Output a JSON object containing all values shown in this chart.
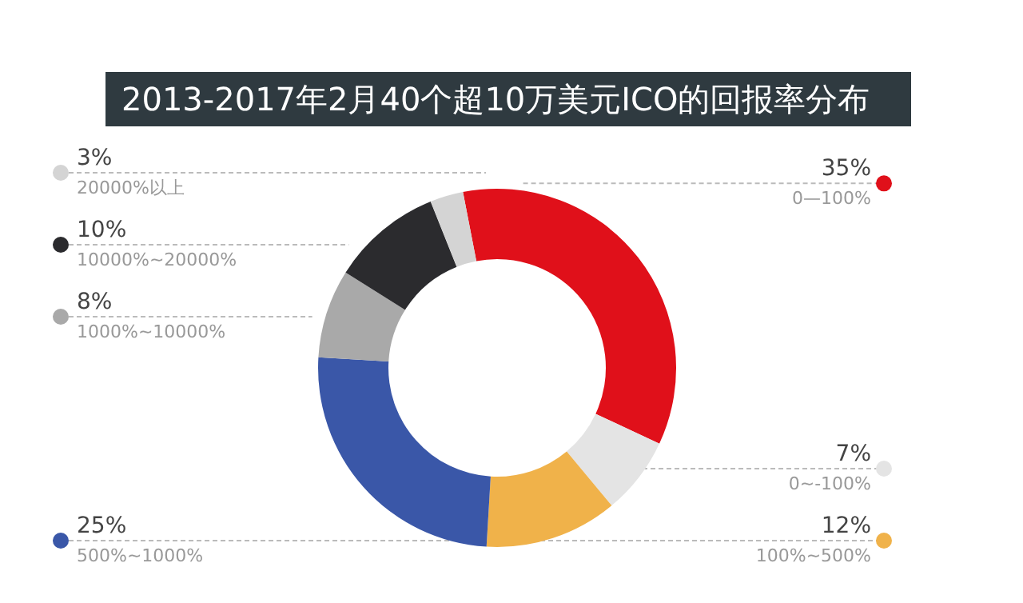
{
  "chart_data": {
    "type": "donut",
    "title": "2013-2017年2月40个超10万美元ICO的回报率分布",
    "categories": [
      "0—100%",
      "0~-100%",
      "100%~500%",
      "500%~1000%",
      "1000%~10000%",
      "10000%~20000%",
      "20000%以上"
    ],
    "values": [
      35,
      7,
      12,
      25,
      8,
      10,
      3
    ],
    "value_labels": [
      "35%",
      "7%",
      "12%",
      "25%",
      "8%",
      "10%",
      "3%"
    ],
    "colors": [
      "#e0101a",
      "#e4e4e4",
      "#f0b24a",
      "#3a57a8",
      "#a9a9a9",
      "#2b2b2e",
      "#d4d4d4"
    ],
    "legend": "left"
  }
}
